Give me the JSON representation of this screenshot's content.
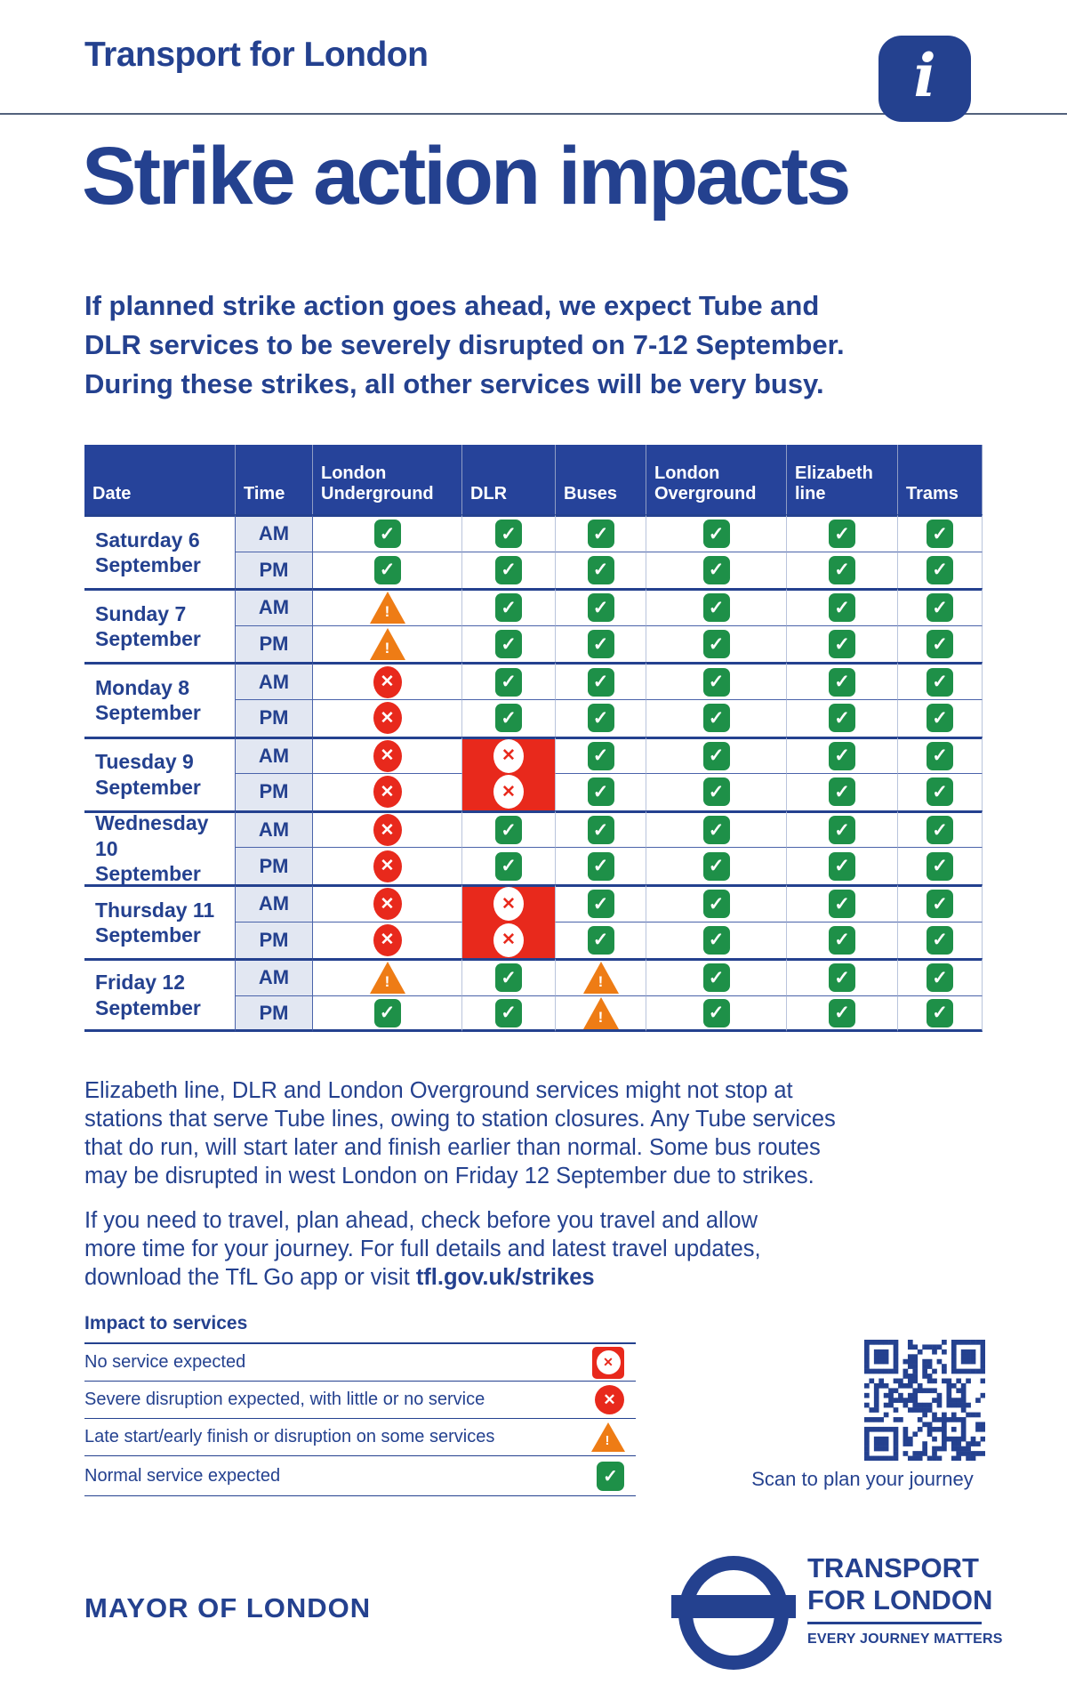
{
  "page": {
    "brand": "Transport for London",
    "title": "Strike action impacts"
  },
  "icons": {
    "ok": "✓",
    "severe": "✕",
    "none": "✕",
    "warn": "!",
    "info": "i"
  },
  "colors": {
    "blue": "#24418f",
    "header_blue": "#26439a",
    "mid_blue": "#4a63aa",
    "pale_blue": "#b9c4dc",
    "time_bg": "#e2e7f2",
    "green": "#1e9048",
    "red": "#e8291c",
    "orange": "#ee7c15",
    "rule_gray": "#53627d"
  },
  "intro_lines": [
    "If planned strike action goes ahead, we expect Tube and",
    "DLR services to be severely disrupted on 7-12 September.",
    "During these strikes, all other services will be very busy."
  ],
  "table": {
    "columns": [
      "Date",
      "Time",
      "London Underground",
      "DLR",
      "Buses",
      "London Overground",
      "Elizabeth line",
      "Trams"
    ],
    "time_labels": [
      "AM",
      "PM"
    ],
    "rows": [
      {
        "date_lines": [
          "Saturday 6",
          "September"
        ],
        "am": [
          "ok",
          "ok",
          "ok",
          "ok",
          "ok",
          "ok"
        ],
        "pm": [
          "ok",
          "ok",
          "ok",
          "ok",
          "ok",
          "ok"
        ]
      },
      {
        "date_lines": [
          "Sunday 7",
          "September"
        ],
        "am": [
          "warn",
          "ok",
          "ok",
          "ok",
          "ok",
          "ok"
        ],
        "pm": [
          "warn",
          "ok",
          "ok",
          "ok",
          "ok",
          "ok"
        ]
      },
      {
        "date_lines": [
          "Monday 8",
          "September"
        ],
        "am": [
          "severe",
          "ok",
          "ok",
          "ok",
          "ok",
          "ok"
        ],
        "pm": [
          "severe",
          "ok",
          "ok",
          "ok",
          "ok",
          "ok"
        ]
      },
      {
        "date_lines": [
          "Tuesday 9",
          "September"
        ],
        "am": [
          "severe",
          "none",
          "ok",
          "ok",
          "ok",
          "ok"
        ],
        "pm": [
          "severe",
          "none",
          "ok",
          "ok",
          "ok",
          "ok"
        ]
      },
      {
        "date_lines": [
          "Wednesday 10",
          "September"
        ],
        "am": [
          "severe",
          "ok",
          "ok",
          "ok",
          "ok",
          "ok"
        ],
        "pm": [
          "severe",
          "ok",
          "ok",
          "ok",
          "ok",
          "ok"
        ]
      },
      {
        "date_lines": [
          "Thursday 11",
          "September"
        ],
        "am": [
          "severe",
          "none",
          "ok",
          "ok",
          "ok",
          "ok"
        ],
        "pm": [
          "severe",
          "none",
          "ok",
          "ok",
          "ok",
          "ok"
        ]
      },
      {
        "date_lines": [
          "Friday 12",
          "September"
        ],
        "am": [
          "warn",
          "ok",
          "warn",
          "ok",
          "ok",
          "ok"
        ],
        "pm": [
          "ok",
          "ok",
          "warn",
          "ok",
          "ok",
          "ok"
        ]
      }
    ]
  },
  "notes": {
    "service_note_lines": [
      "Elizabeth line, DLR and London Overground services might not stop at",
      "stations that serve Tube lines, owing to station closures. Any Tube services",
      "that do run, will start later and finish earlier than normal. Some bus routes",
      "may be disrupted in west London on Friday 12 September due to strikes."
    ],
    "travel_lines": [
      "If you need to travel, plan ahead, check before you travel and allow",
      "more time for your journey. For full details and latest travel updates,",
      "download the TfL Go app or visit "
    ],
    "travel_link": "tfl.gov.uk/strikes"
  },
  "legend": {
    "title": "Impact to services",
    "items": [
      {
        "label": "No service expected",
        "state": "none"
      },
      {
        "label": "Severe disruption expected, with little or no service",
        "state": "severe"
      },
      {
        "label": "Late start/early finish or disruption on some services",
        "state": "warn"
      },
      {
        "label": "Normal service expected",
        "state": "ok"
      }
    ]
  },
  "qr": {
    "caption": "Scan to plan your journey"
  },
  "footer": {
    "mayor": "MAYOR OF LONDON",
    "tfl_lines": [
      "TRANSPORT",
      "FOR LONDON"
    ],
    "tagline": "EVERY JOURNEY MATTERS"
  }
}
